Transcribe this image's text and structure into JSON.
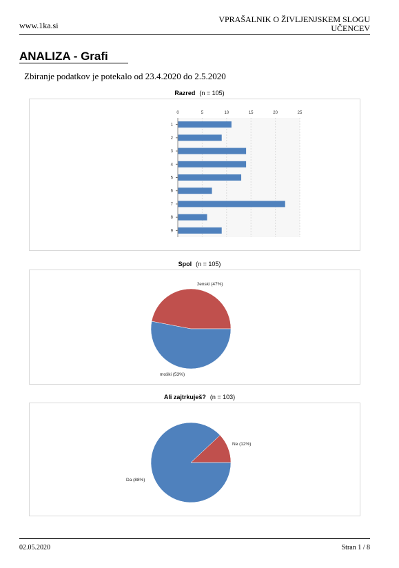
{
  "header": {
    "site": "www.1ka.si",
    "doc_title_line1": "VPRAŠALNIK O ŽIVLJENJSKEM SLOGU",
    "doc_title_line2": "UČENCEV"
  },
  "page": {
    "title": "ANALIZA - Grafi",
    "subtitle": "Zbiranje podatkov je potekalo od 23.4.2020 do 2.5.2020"
  },
  "footer": {
    "date": "02.05.2020",
    "page": "Stran 1 / 8"
  },
  "colors": {
    "blue": "#4f81bd",
    "red": "#c0504d"
  },
  "chart_data": [
    {
      "type": "bar",
      "orientation": "horizontal",
      "title": "Razred",
      "n_label": "(n = 105)",
      "categories": [
        "1",
        "2",
        "3",
        "4",
        "5",
        "6",
        "7",
        "8",
        "9"
      ],
      "values": [
        11,
        9,
        14,
        14,
        13,
        7,
        22,
        6,
        9
      ],
      "xlim": [
        0,
        25
      ],
      "xticks": [
        0,
        5,
        10,
        15,
        20,
        25
      ],
      "grid": true
    },
    {
      "type": "pie",
      "title": "Spol",
      "n_label": "(n = 105)",
      "slices": [
        {
          "label": "ženski (47%)",
          "value": 47,
          "color": "#c0504d"
        },
        {
          "label": "moški (53%)",
          "value": 53,
          "color": "#4f81bd"
        }
      ]
    },
    {
      "type": "pie",
      "title": "Ali zajtrkuješ?",
      "n_label": "(n = 103)",
      "slices": [
        {
          "label": "Ne (12%)",
          "value": 12,
          "color": "#c0504d"
        },
        {
          "label": "Da (88%)",
          "value": 88,
          "color": "#4f81bd"
        }
      ]
    }
  ]
}
